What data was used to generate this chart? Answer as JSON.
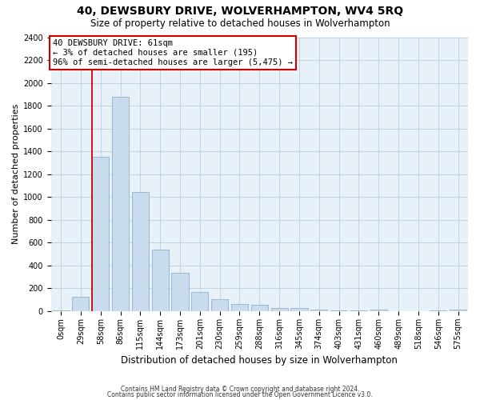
{
  "title": "40, DEWSBURY DRIVE, WOLVERHAMPTON, WV4 5RQ",
  "subtitle": "Size of property relative to detached houses in Wolverhampton",
  "xlabel": "Distribution of detached houses by size in Wolverhampton",
  "ylabel": "Number of detached properties",
  "footer1": "Contains HM Land Registry data © Crown copyright and database right 2024.",
  "footer2": "Contains public sector information licensed under the Open Government Licence v3.0.",
  "bar_color": "#c8dced",
  "bar_edgecolor": "#9ab8d0",
  "grid_color": "#b8cfe0",
  "background_color": "#e8f0f8",
  "annotation_line1": "40 DEWSBURY DRIVE: 61sqm",
  "annotation_line2": "← 3% of detached houses are smaller (195)",
  "annotation_line3": "96% of semi-detached houses are larger (5,475) →",
  "annotation_box_facecolor": "#ffffff",
  "annotation_border_color": "#cc0000",
  "vline_color": "#cc0000",
  "vline_x_idx": 2,
  "ylim_max": 2400,
  "categories": [
    "0sqm",
    "29sqm",
    "58sqm",
    "86sqm",
    "115sqm",
    "144sqm",
    "173sqm",
    "201sqm",
    "230sqm",
    "259sqm",
    "288sqm",
    "316sqm",
    "345sqm",
    "374sqm",
    "403sqm",
    "431sqm",
    "460sqm",
    "489sqm",
    "518sqm",
    "546sqm",
    "575sqm"
  ],
  "values": [
    10,
    125,
    1350,
    1880,
    1045,
    540,
    335,
    165,
    105,
    60,
    55,
    30,
    25,
    15,
    10,
    5,
    15,
    3,
    3,
    5,
    12
  ],
  "title_fontsize": 10,
  "subtitle_fontsize": 8.5,
  "ylabel_fontsize": 8,
  "xlabel_fontsize": 8.5,
  "footer_fontsize": 5.5,
  "tick_fontsize": 7,
  "annotation_fontsize": 7.5
}
